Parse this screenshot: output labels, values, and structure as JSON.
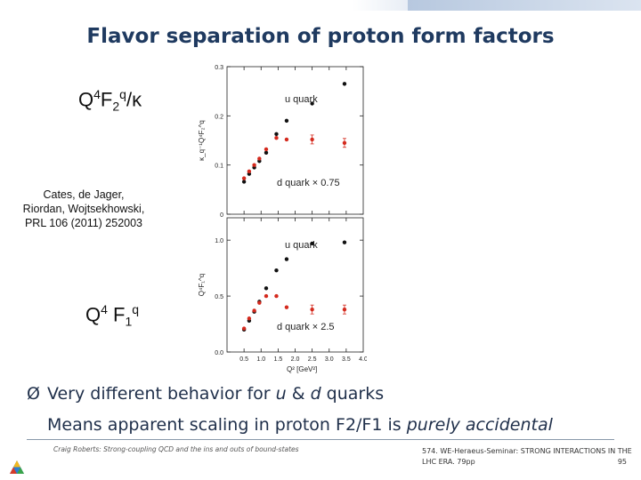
{
  "slide": {
    "title": "Flavor separation of proton form factors",
    "label_f2_main": "Q",
    "label_f2_sup1": "4",
    "label_f2_mid": "F",
    "label_f2_sub": "2",
    "label_f2_sup2": "q",
    "label_f2_tail": "/κ",
    "citation": [
      "Cates, de Jager,",
      "Riordan, Wojtsekhowski,",
      "PRL 106 (2011) 252003"
    ],
    "label_f1_main": "Q",
    "label_f1_sup": "4",
    "label_f1_mid": " F",
    "label_f1_sub": "1",
    "label_f1_sup2": "q",
    "bullet_arrow": "Ø",
    "bullet_part1": "Very different behavior for ",
    "bullet_u": "u",
    "bullet_amp": " & ",
    "bullet_d": "d",
    "bullet_part2": " quarks",
    "sub_part1": "Means apparent scaling in proton F2/F1 is ",
    "sub_em": "purely accidental"
  },
  "footer": {
    "left": "Craig Roberts: Strong-coupling QCD and the ins and outs of bound-states",
    "right_line1": "574. WE-Heraeus-Seminar: STRONG INTERACTIONS IN THE",
    "right_line2": "LHC ERA. 79pp",
    "page": "95"
  },
  "colors": {
    "title": "#1f3a60",
    "u_quark": "#111111",
    "d_quark": "#d42a1e"
  },
  "chart_data": [
    {
      "type": "scatter",
      "panel": "top",
      "ylabel": "κ_q⁻¹Q⁴F₂^q",
      "xlim": [
        0,
        4.0
      ],
      "ylim": [
        0,
        0.3
      ],
      "yticks": [
        "0",
        "0.1",
        "0.2",
        "0.3"
      ],
      "series": [
        {
          "name": "u quark",
          "x": [
            0.5,
            0.65,
            0.8,
            0.95,
            1.15,
            1.45,
            1.75,
            2.5,
            3.45
          ],
          "y": [
            0.066,
            0.082,
            0.095,
            0.108,
            0.125,
            0.163,
            0.19,
            0.225,
            0.265
          ]
        },
        {
          "name": "d quark × 0.75",
          "x": [
            0.5,
            0.65,
            0.8,
            0.95,
            1.15,
            1.45,
            1.75,
            2.5,
            3.45
          ],
          "y": [
            0.073,
            0.087,
            0.1,
            0.113,
            0.132,
            0.155,
            0.152,
            0.152,
            0.145
          ]
        }
      ]
    },
    {
      "type": "scatter",
      "panel": "bottom",
      "ylabel": "Q⁴F₁^q",
      "xlim": [
        0,
        4.0
      ],
      "ylim": [
        0,
        1.2
      ],
      "yticks": [
        "0.0",
        "0.5",
        "1.0"
      ],
      "xticks": [
        "0.5",
        "1.0",
        "1.5",
        "2.0",
        "2.5",
        "3.0",
        "3.5",
        "4.0"
      ],
      "xlabel": "Q² [GeV²]",
      "series": [
        {
          "name": "u quark",
          "x": [
            0.5,
            0.65,
            0.8,
            0.95,
            1.15,
            1.45,
            1.75,
            2.5,
            3.45
          ],
          "y": [
            0.2,
            0.28,
            0.36,
            0.45,
            0.57,
            0.73,
            0.83,
            0.97,
            0.98
          ]
        },
        {
          "name": "d quark × 2.5",
          "x": [
            0.5,
            0.65,
            0.8,
            0.95,
            1.15,
            1.45,
            1.75,
            2.5,
            3.45
          ],
          "y": [
            0.21,
            0.3,
            0.37,
            0.44,
            0.5,
            0.5,
            0.4,
            0.38,
            0.38
          ]
        }
      ],
      "annotations": [
        "u quark",
        "d quark × 2.5"
      ]
    }
  ],
  "top_annotations": [
    "u quark",
    "d quark × 0.75"
  ]
}
